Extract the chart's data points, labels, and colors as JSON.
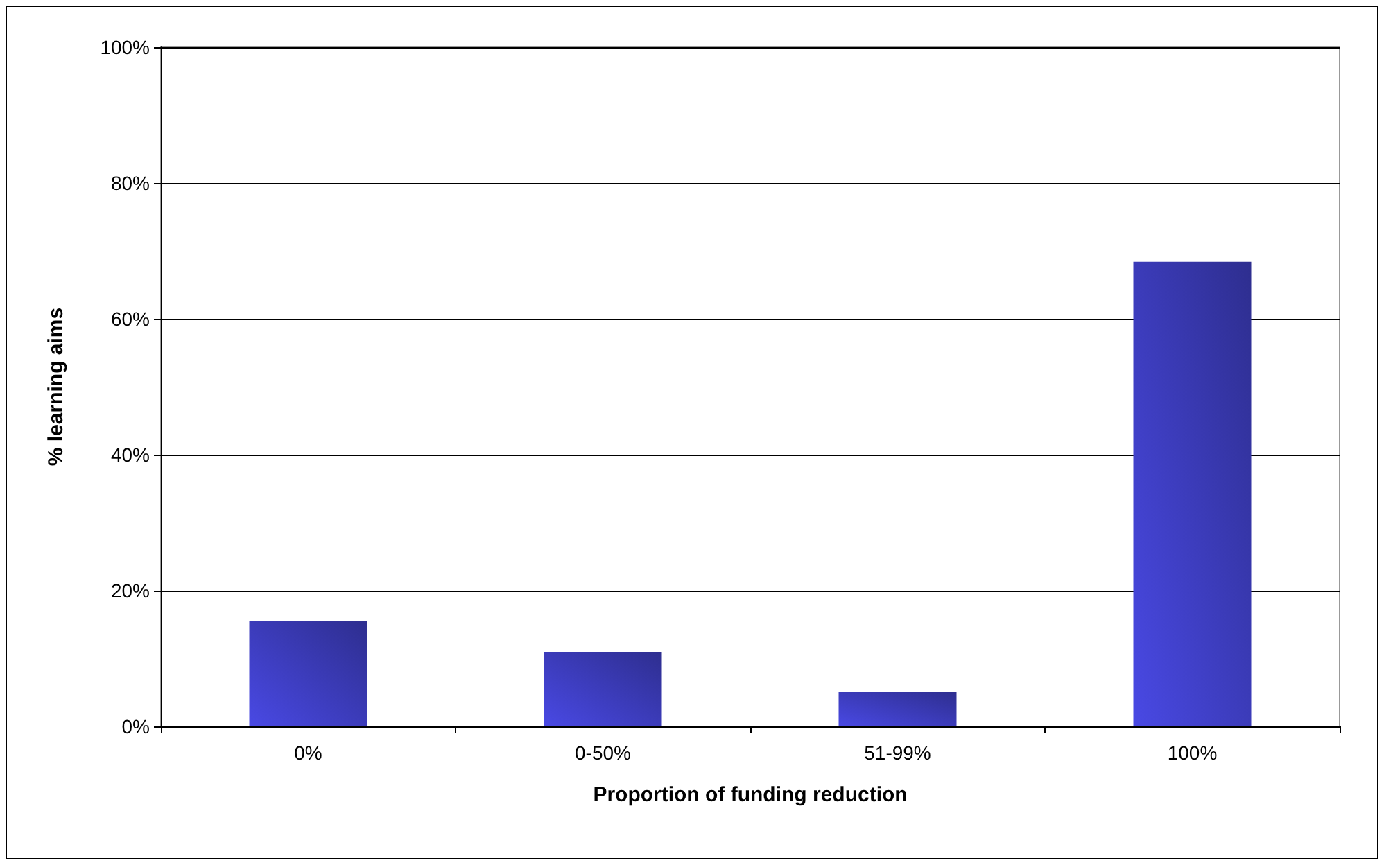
{
  "chart_data": {
    "type": "bar",
    "xlabel": "Proportion of funding reduction",
    "ylabel": "% learning aims",
    "categories": [
      "0%",
      "0-50%",
      "51-99%",
      "100%"
    ],
    "values": [
      15.5,
      11,
      5.1,
      68.4
    ],
    "color": "#2e2e8f",
    "ylim": [
      0,
      100
    ],
    "yticks": [
      {
        "value": 0,
        "label": "0%"
      },
      {
        "value": 20,
        "label": "20%"
      },
      {
        "value": 40,
        "label": "40%"
      },
      {
        "value": 60,
        "label": "60%"
      },
      {
        "value": 80,
        "label": "80%"
      },
      {
        "value": 100,
        "label": "100%"
      }
    ],
    "grid": "y"
  }
}
